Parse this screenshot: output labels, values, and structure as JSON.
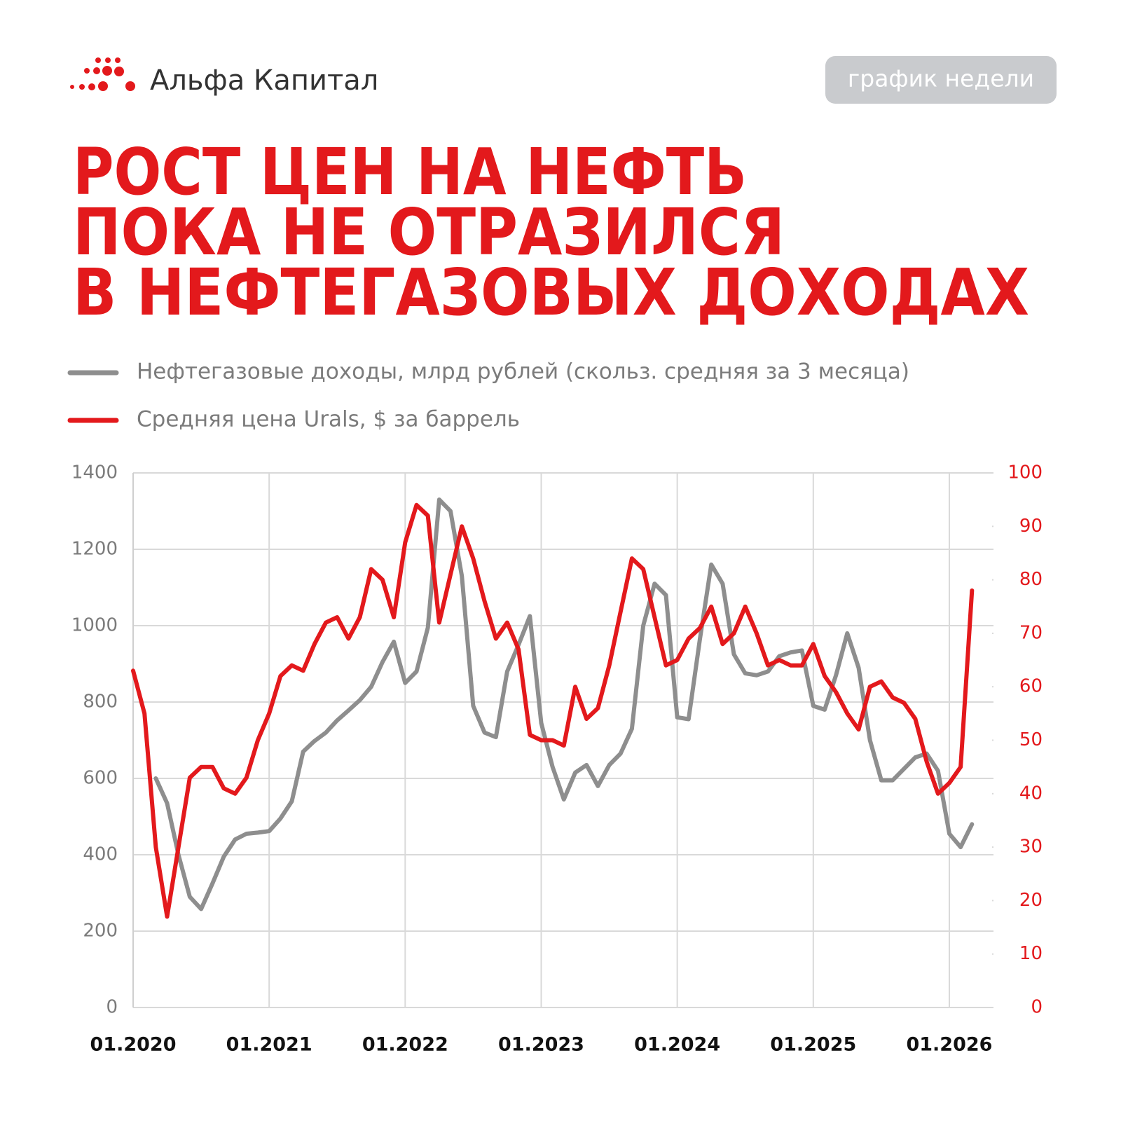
{
  "header": {
    "logo": "Альфа Капитал",
    "badge": "график недели"
  },
  "chart_data": {
    "type": "line",
    "title": [
      "РОСТ ЦЕН НА НЕФТЬ",
      "ПОКА НЕ ОТРАЗИЛСЯ",
      "В НЕФТЕГАЗОВЫХ  ДОХОДАХ"
    ],
    "categories": [
      "01.2020",
      null,
      null,
      null,
      null,
      null,
      null,
      null,
      null,
      null,
      null,
      null,
      "01.2021",
      null,
      null,
      null,
      null,
      null,
      null,
      null,
      null,
      null,
      null,
      null,
      "01.2022",
      null,
      null,
      null,
      null,
      null,
      null,
      null,
      null,
      null,
      null,
      null,
      "01.2023",
      null,
      null,
      null,
      null,
      null,
      null,
      null,
      null,
      null,
      null,
      null,
      "01.2024",
      null,
      null,
      null,
      null,
      null,
      null,
      null,
      null,
      null,
      null,
      null,
      "01.2025",
      null,
      null,
      null,
      null,
      null,
      null,
      null,
      null,
      null,
      null,
      null,
      "01.2026",
      null,
      null
    ],
    "series": [
      {
        "name": "Нефтегазовые доходы, млрд рублей (скольз. средняя за 3 месяца)",
        "color": "#8e8e8e",
        "axis": "y",
        "values": [
          null,
          null,
          600,
          535,
          400,
          290,
          258,
          325,
          395,
          440,
          455,
          458,
          462,
          495,
          540,
          670,
          698,
          720,
          752,
          778,
          805,
          840,
          905,
          958,
          850,
          880,
          995,
          1330,
          1300,
          1130,
          790,
          720,
          708,
          880,
          950,
          1025,
          745,
          630,
          545,
          615,
          635,
          580,
          635,
          665,
          730,
          1000,
          1110,
          1080,
          760,
          755,
          965,
          1160,
          1110,
          925,
          875,
          870,
          880,
          920,
          930,
          935,
          790,
          780,
          870,
          980,
          890,
          700,
          595,
          595,
          625,
          655,
          665,
          620,
          455,
          420,
          480
        ]
      },
      {
        "name": "Средняя цена Urals, $ за баррель",
        "color": "#e3191c",
        "axis": "y2",
        "values": [
          63,
          55,
          30,
          17,
          30,
          43,
          45,
          45,
          41,
          40,
          43,
          50,
          55,
          62,
          64,
          63,
          68,
          72,
          73,
          69,
          73,
          82,
          80,
          73,
          87,
          94,
          92,
          72,
          81,
          90,
          84,
          76,
          69,
          72,
          67,
          51,
          50,
          50,
          49,
          60,
          54,
          56,
          64,
          74,
          84,
          82,
          73,
          64,
          65,
          69,
          71,
          75,
          68,
          70,
          75,
          70,
          64,
          65,
          64,
          64,
          68,
          62,
          59,
          55,
          52,
          60,
          61,
          58,
          57,
          54,
          46,
          40,
          42,
          45,
          78
        ]
      }
    ],
    "ylim": [
      0,
      1400
    ],
    "yticks": [
      0,
      200,
      400,
      600,
      800,
      1000,
      1200,
      1400
    ],
    "y2lim": [
      0,
      100
    ],
    "y2ticks": [
      0,
      10,
      20,
      30,
      40,
      50,
      60,
      70,
      80,
      90,
      100
    ],
    "grid": true
  }
}
